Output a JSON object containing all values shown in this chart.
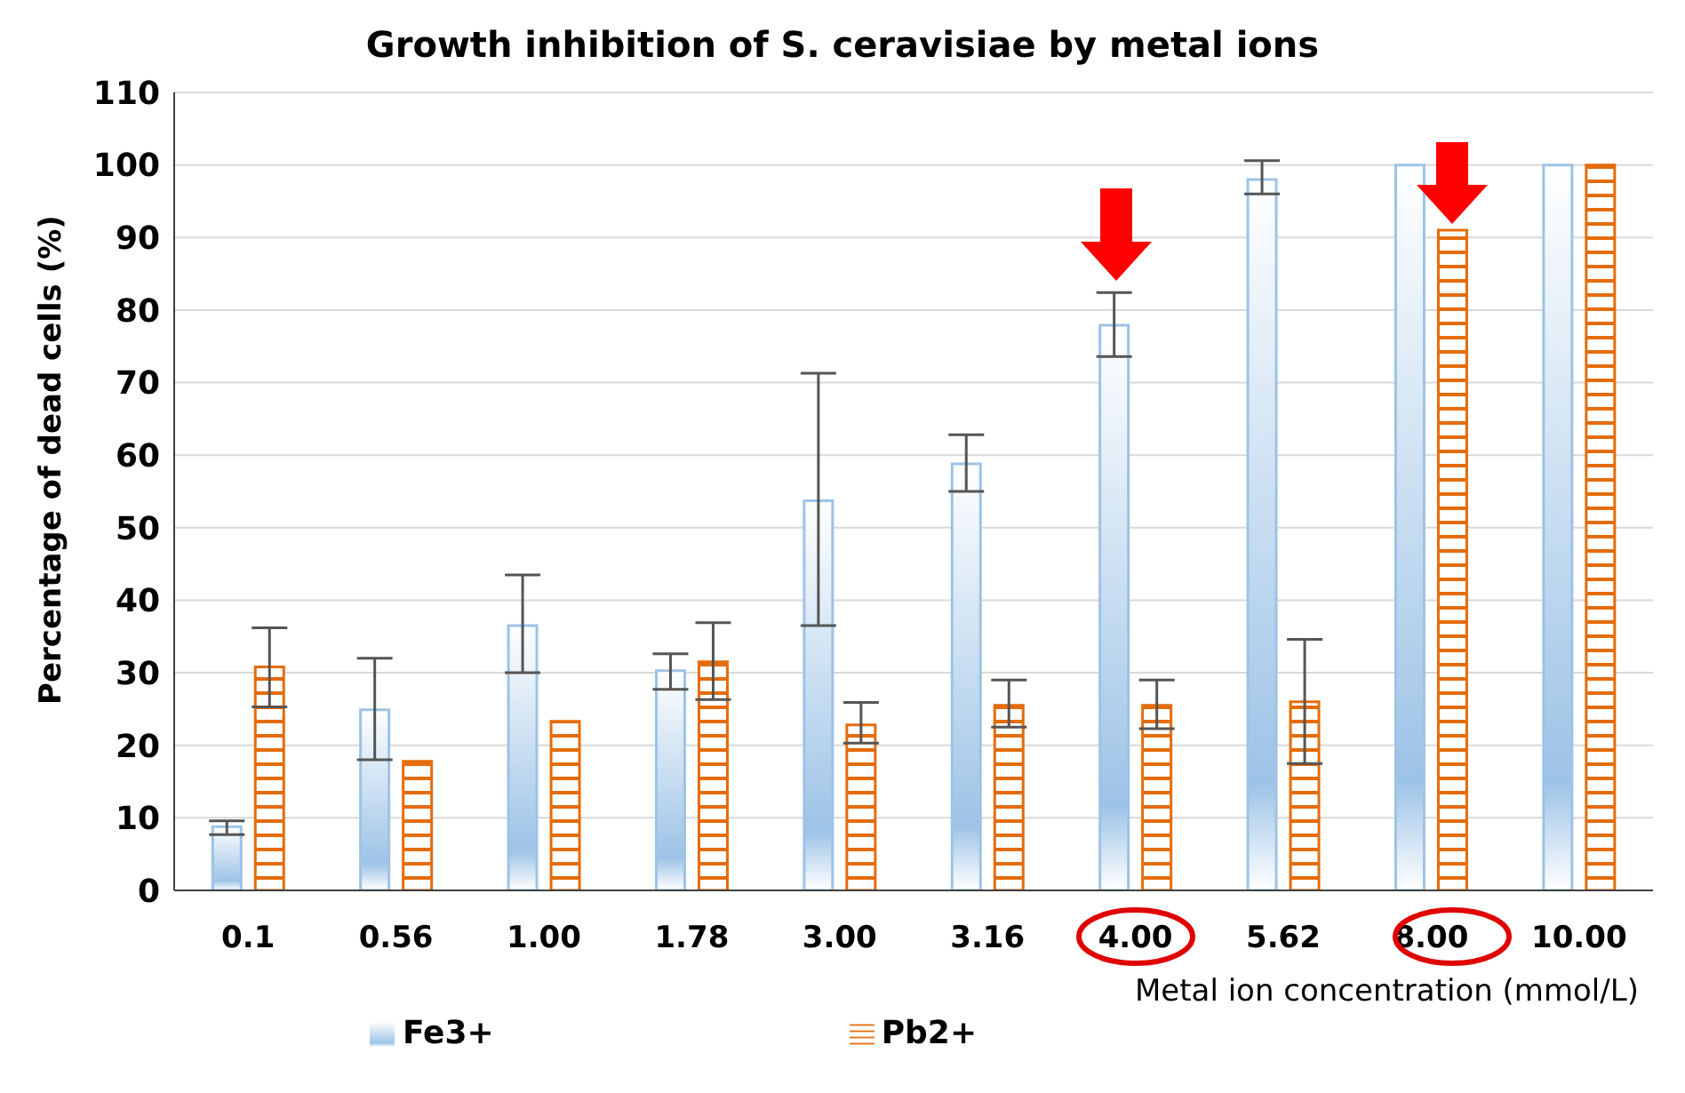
{
  "chart_data": {
    "type": "bar",
    "title": "Growth inhibition of S. ceravisiae by metal ions",
    "xlabel": "Metal ion concentration (mmol/L)",
    "ylabel": "Percentage of dead cells (%)",
    "categories": [
      "0.1",
      "0.56",
      "1.00",
      "1.78",
      "3.00",
      "3.16",
      "4.00",
      "5.62",
      "8.00",
      "10.00"
    ],
    "series": [
      {
        "name": "Fe3+",
        "color": "#9dc3e6",
        "values": [
          8.8,
          24.9,
          36.5,
          30.3,
          53.7,
          58.8,
          77.9,
          98,
          100,
          100
        ],
        "errors": [
          [
            7.7,
            9.6
          ],
          [
            18,
            32
          ],
          [
            30,
            43.5
          ],
          [
            27.7,
            32.6
          ],
          [
            36.5,
            71.3
          ],
          [
            55,
            62.8
          ],
          [
            73.6,
            82.4
          ],
          [
            96,
            100.6
          ],
          null,
          null
        ]
      },
      {
        "name": "Pb2+",
        "color": "#e46c0a",
        "values": [
          30.8,
          17.8,
          23.3,
          31.5,
          22.8,
          25.5,
          25.5,
          26,
          91,
          100
        ],
        "errors": [
          [
            25.3,
            36.2
          ],
          null,
          null,
          [
            26.3,
            36.9
          ],
          [
            20.3,
            25.9
          ],
          [
            22.5,
            29
          ],
          [
            22.3,
            29
          ],
          [
            17.5,
            34.6
          ],
          null,
          null
        ]
      }
    ],
    "ylim": [
      0,
      110
    ],
    "yticks": [
      0,
      10,
      20,
      30,
      40,
      50,
      60,
      70,
      80,
      90,
      100,
      110
    ],
    "grid": "y",
    "legend": "bottom"
  }
}
